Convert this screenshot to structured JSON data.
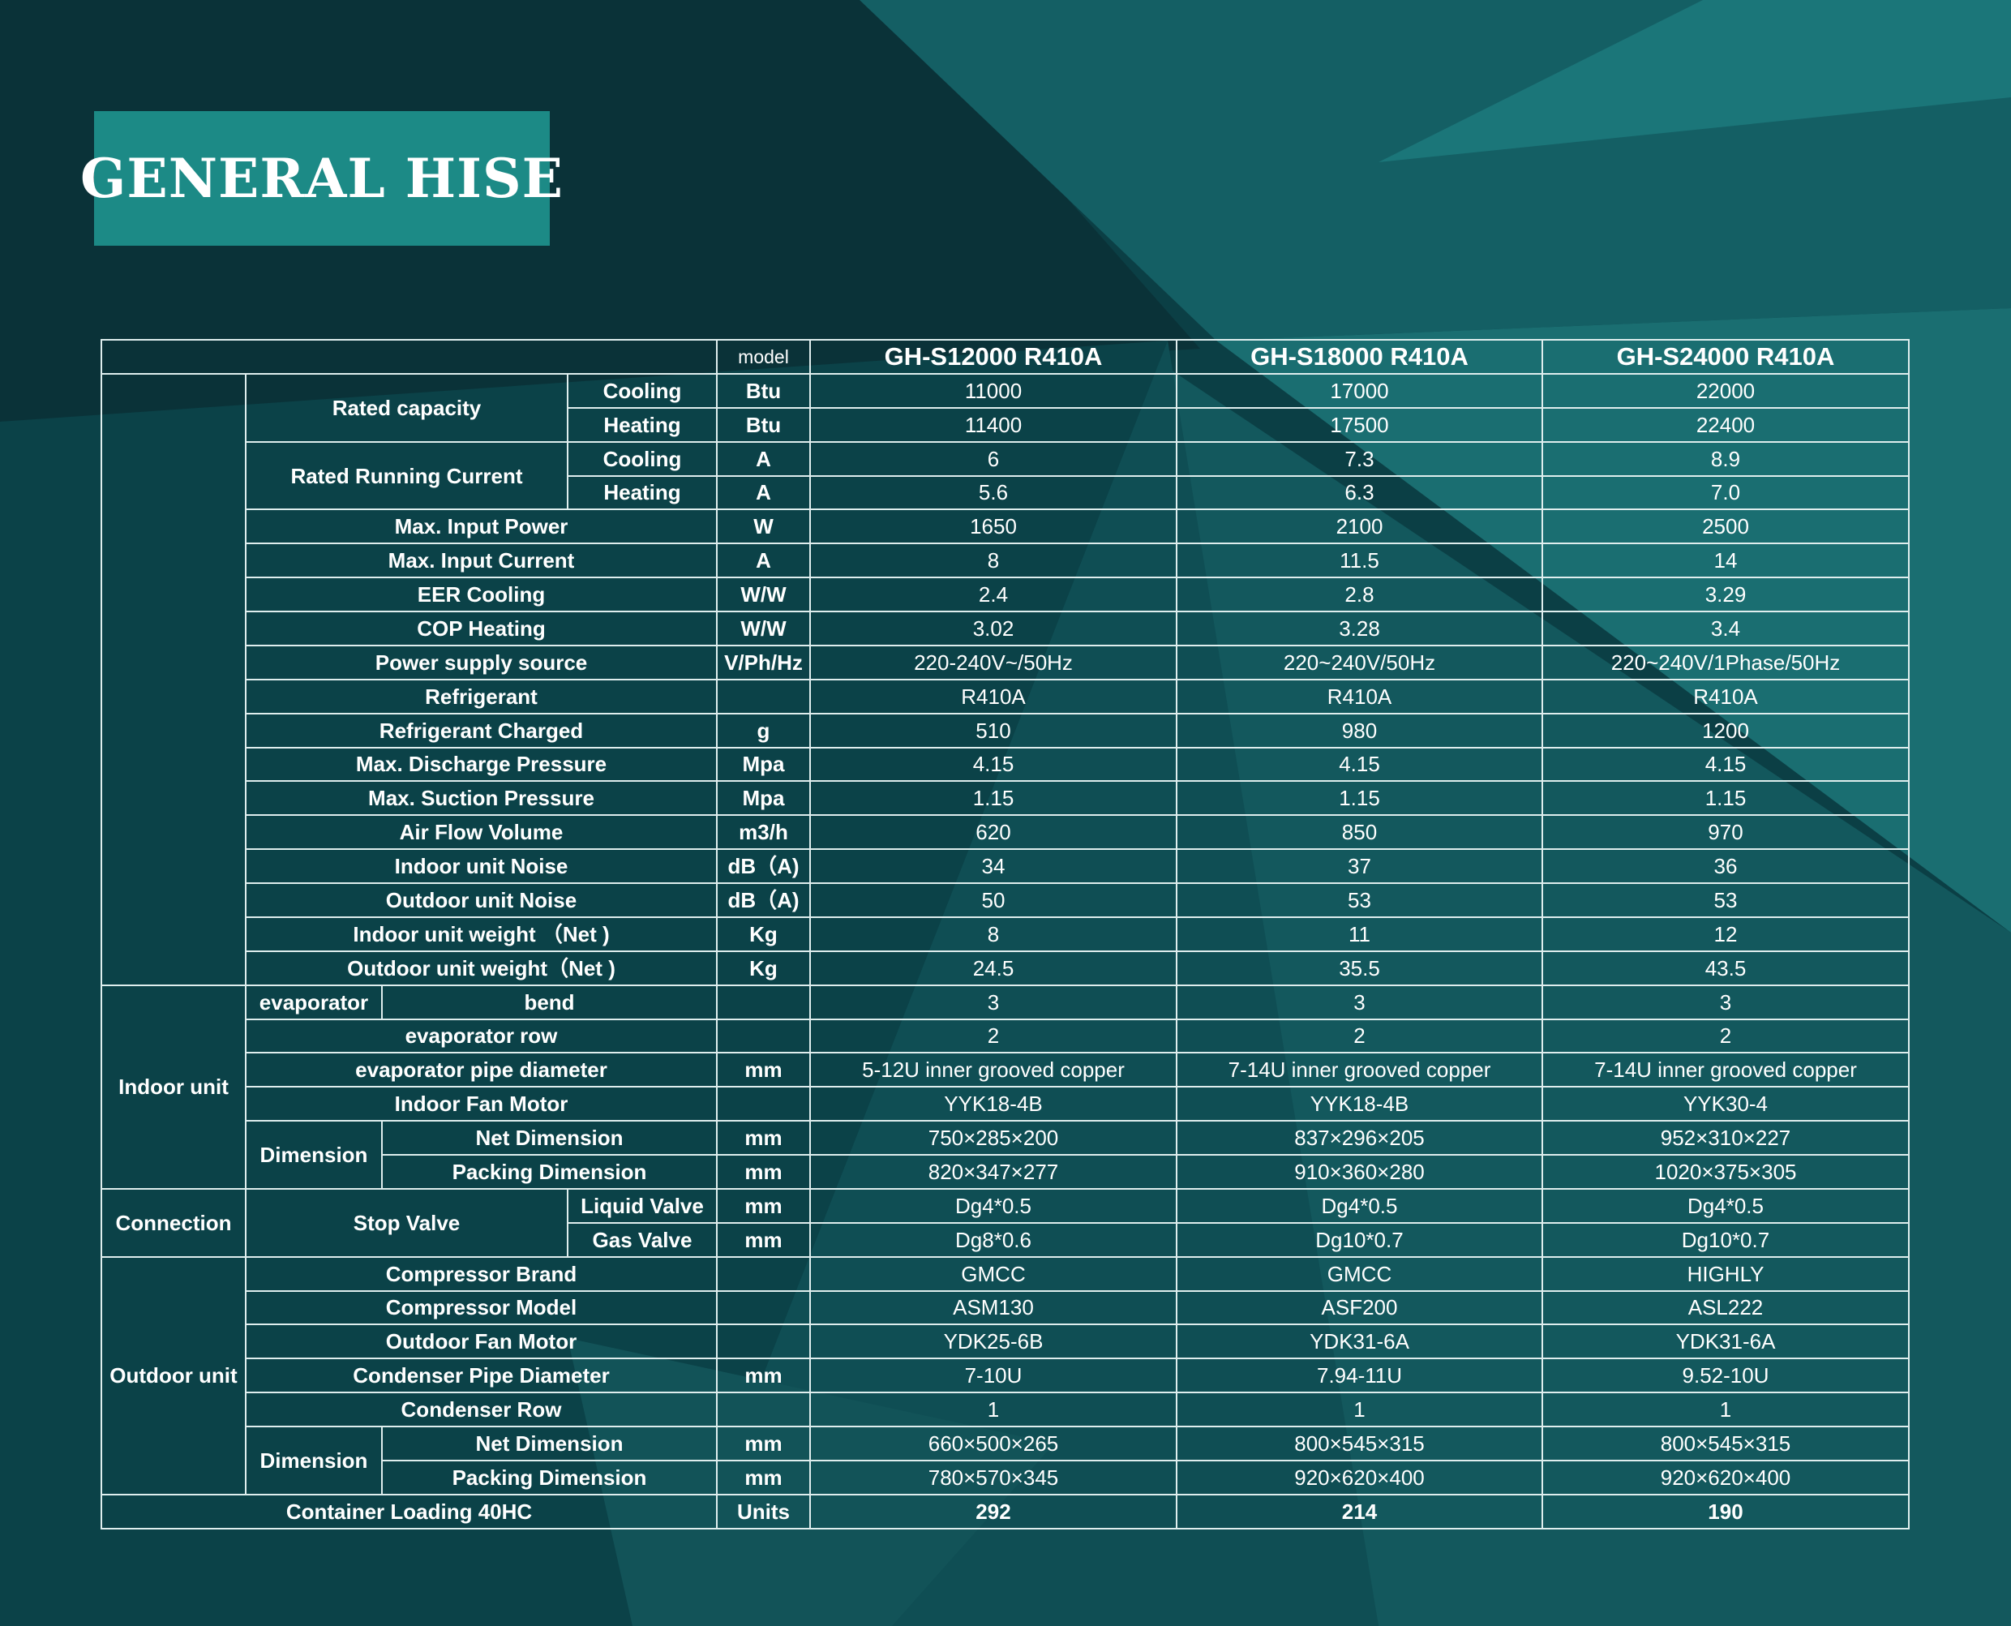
{
  "brand": {
    "name": "GENERAL HISE"
  },
  "table": {
    "model_label": "model",
    "models": [
      "GH-S12000 R410A",
      "GH-S18000 R410A",
      "GH-S24000 R410A"
    ],
    "groups": {
      "indoor_unit": "Indoor unit",
      "connection": "Connection",
      "outdoor_unit": "Outdoor unit"
    },
    "subgroups": {
      "rated_capacity": "Rated capacity",
      "rated_running_current": "Rated Running Current",
      "evaporator": "evaporator",
      "indoor_dimension": "Dimension",
      "stop_valve": "Stop Valve",
      "outdoor_dimension": "Dimension"
    },
    "rows": {
      "rc_cooling": {
        "label": "Cooling",
        "unit": "Btu",
        "values": [
          "11000",
          "17000",
          "22000"
        ]
      },
      "rc_heating": {
        "label": "Heating",
        "unit": "Btu",
        "values": [
          "11400",
          "17500",
          "22400"
        ]
      },
      "rrc_cooling": {
        "label": "Cooling",
        "unit": "A",
        "values": [
          "6",
          "7.3",
          "8.9"
        ]
      },
      "rrc_heating": {
        "label": "Heating",
        "unit": "A",
        "values": [
          "5.6",
          "6.3",
          "7.0"
        ]
      },
      "max_input_power": {
        "label": "Max. Input Power",
        "unit": "W",
        "values": [
          "1650",
          "2100",
          "2500"
        ]
      },
      "max_input_current": {
        "label": "Max. Input Current",
        "unit": "A",
        "values": [
          "8",
          "11.5",
          "14"
        ]
      },
      "eer_cooling": {
        "label": "EER Cooling",
        "unit": "W/W",
        "values": [
          "2.4",
          "2.8",
          "3.29"
        ]
      },
      "cop_heating": {
        "label": "COP Heating",
        "unit": "W/W",
        "values": [
          "3.02",
          "3.28",
          "3.4"
        ]
      },
      "power_supply": {
        "label": "Power supply source",
        "unit": "V/Ph/Hz",
        "values": [
          "220-240V~/50Hz",
          "220~240V/50Hz",
          "220~240V/1Phase/50Hz"
        ]
      },
      "refrigerant": {
        "label": "Refrigerant",
        "unit": "",
        "values": [
          "R410A",
          "R410A",
          "R410A"
        ]
      },
      "refrigerant_charged": {
        "label": "Refrigerant Charged",
        "unit": "g",
        "values": [
          "510",
          "980",
          "1200"
        ]
      },
      "max_discharge": {
        "label": "Max. Discharge Pressure",
        "unit": "Mpa",
        "values": [
          "4.15",
          "4.15",
          "4.15"
        ]
      },
      "max_suction": {
        "label": "Max. Suction Pressure",
        "unit": "Mpa",
        "values": [
          "1.15",
          "1.15",
          "1.15"
        ]
      },
      "air_flow": {
        "label": "Air Flow Volume",
        "unit": "m3/h",
        "values": [
          "620",
          "850",
          "970"
        ]
      },
      "indoor_noise": {
        "label": "Indoor unit Noise",
        "unit": "dB（A)",
        "values": [
          "34",
          "37",
          "36"
        ]
      },
      "outdoor_noise": {
        "label": "Outdoor unit Noise",
        "unit": "dB（A)",
        "values": [
          "50",
          "53",
          "53"
        ]
      },
      "indoor_weight": {
        "label": "Indoor unit  weight （Net )",
        "unit": "Kg",
        "values": [
          "8",
          "11",
          "12"
        ]
      },
      "outdoor_weight": {
        "label": "Outdoor unit  weight（Net )",
        "unit": "Kg",
        "values": [
          "24.5",
          "35.5",
          "43.5"
        ]
      },
      "evap_bend": {
        "label": "bend",
        "unit": "",
        "values": [
          "3",
          "3",
          "3"
        ]
      },
      "evap_row": {
        "label": "evaporator row",
        "unit": "",
        "values": [
          "2",
          "2",
          "2"
        ]
      },
      "evap_pipe": {
        "label": "evaporator pipe diameter",
        "unit": "mm",
        "values": [
          "5-12U  inner grooved copper",
          "7-14U  inner grooved copper",
          "7-14U  inner grooved copper"
        ]
      },
      "indoor_fan": {
        "label": "Indoor Fan Motor",
        "unit": "",
        "values": [
          "YYK18-4B",
          "YYK18-4B",
          "YYK30-4"
        ]
      },
      "in_net_dim": {
        "label": "Net Dimension",
        "unit": "mm",
        "values": [
          "750×285×200",
          "837×296×205",
          "952×310×227"
        ]
      },
      "in_pack_dim": {
        "label": "Packing  Dimension",
        "unit": "mm",
        "values": [
          "820×347×277",
          "910×360×280",
          "1020×375×305"
        ]
      },
      "liquid_valve": {
        "label": "Liquid Valve",
        "unit": "mm",
        "values": [
          "Dg4*0.5",
          "Dg4*0.5",
          "Dg4*0.5"
        ]
      },
      "gas_valve": {
        "label": "Gas Valve",
        "unit": "mm",
        "values": [
          "Dg8*0.6",
          "Dg10*0.7",
          "Dg10*0.7"
        ]
      },
      "comp_brand": {
        "label": "Compressor Brand",
        "unit": "",
        "values": [
          "GMCC",
          "GMCC",
          "HIGHLY"
        ]
      },
      "comp_model": {
        "label": "Compressor Model",
        "unit": "",
        "values": [
          "ASM130",
          "ASF200",
          "ASL222"
        ]
      },
      "outdoor_fan": {
        "label": "Outdoor Fan Motor",
        "unit": "",
        "values": [
          "YDK25-6B",
          "YDK31-6A",
          "YDK31-6A"
        ]
      },
      "cond_pipe": {
        "label": "Condenser Pipe Diameter",
        "unit": "mm",
        "values": [
          "7-10U",
          "7.94-11U",
          "9.52-10U"
        ]
      },
      "cond_row": {
        "label": "Condenser Row",
        "unit": "",
        "values": [
          "1",
          "1",
          "1"
        ]
      },
      "out_net_dim": {
        "label": "Net Dimension",
        "unit": "mm",
        "values": [
          "660×500×265",
          "800×545×315",
          "800×545×315"
        ]
      },
      "out_pack_dim": {
        "label": "Packing  Dimension",
        "unit": "mm",
        "values": [
          "780×570×345",
          "920×620×400",
          "920×620×400"
        ]
      },
      "container": {
        "label": "Container Loading 40HC",
        "unit": "Units",
        "values": [
          "292",
          "214",
          "190"
        ]
      }
    }
  }
}
